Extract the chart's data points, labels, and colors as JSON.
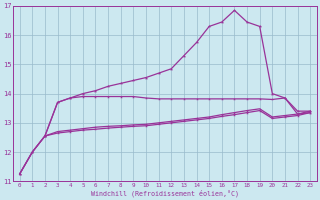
{
  "xlabel": "Windchill (Refroidissement éolien,°C)",
  "bg_color": "#cce8f0",
  "grid_color": "#99bbcc",
  "line_color": "#993399",
  "xlim_min": -0.5,
  "xlim_max": 23.5,
  "ylim_min": 11,
  "ylim_max": 17,
  "yticks": [
    11,
    12,
    13,
    14,
    15,
    16,
    17
  ],
  "xticks": [
    0,
    1,
    2,
    3,
    4,
    5,
    6,
    7,
    8,
    9,
    10,
    11,
    12,
    13,
    14,
    15,
    16,
    17,
    18,
    19,
    20,
    21,
    22,
    23
  ],
  "line_main_x": [
    0,
    1,
    2,
    3,
    4,
    5,
    6,
    7,
    8,
    9,
    10,
    11,
    12,
    13,
    14,
    15,
    16,
    17,
    18,
    19,
    20,
    21,
    22,
    23
  ],
  "line_main_y": [
    11.25,
    12.0,
    12.55,
    13.7,
    13.85,
    14.0,
    14.1,
    14.25,
    14.35,
    14.45,
    14.55,
    14.7,
    14.85,
    15.3,
    15.75,
    16.3,
    16.45,
    16.85,
    16.45,
    16.3,
    14.0,
    13.85,
    13.4,
    13.4
  ],
  "line_upper_x": [
    2,
    3,
    4,
    5,
    6,
    7,
    8,
    9,
    10,
    11,
    12,
    13,
    14,
    15,
    16,
    17,
    18,
    19,
    20,
    21,
    22,
    23
  ],
  "line_upper_y": [
    12.55,
    13.7,
    13.85,
    13.9,
    13.9,
    13.9,
    13.9,
    13.9,
    13.85,
    13.82,
    13.82,
    13.82,
    13.82,
    13.82,
    13.82,
    13.82,
    13.82,
    13.82,
    13.8,
    13.85,
    13.3,
    13.35
  ],
  "line_lower1_x": [
    0,
    1,
    2,
    3,
    4,
    5,
    6,
    7,
    8,
    9,
    10,
    11,
    12,
    13,
    14,
    15,
    16,
    17,
    18,
    19,
    20,
    21,
    22,
    23
  ],
  "line_lower1_y": [
    11.25,
    12.0,
    12.55,
    12.7,
    12.75,
    12.8,
    12.85,
    12.88,
    12.9,
    12.93,
    12.95,
    13.0,
    13.05,
    13.1,
    13.15,
    13.2,
    13.28,
    13.35,
    13.42,
    13.48,
    13.2,
    13.25,
    13.3,
    13.4
  ],
  "line_lower2_x": [
    0,
    1,
    2,
    3,
    4,
    5,
    6,
    7,
    8,
    9,
    10,
    11,
    12,
    13,
    14,
    15,
    16,
    17,
    18,
    19,
    20,
    21,
    22,
    23
  ],
  "line_lower2_y": [
    11.25,
    12.0,
    12.55,
    12.65,
    12.7,
    12.75,
    12.78,
    12.82,
    12.85,
    12.88,
    12.9,
    12.95,
    13.0,
    13.05,
    13.1,
    13.15,
    13.22,
    13.28,
    13.35,
    13.42,
    13.15,
    13.2,
    13.25,
    13.35
  ]
}
